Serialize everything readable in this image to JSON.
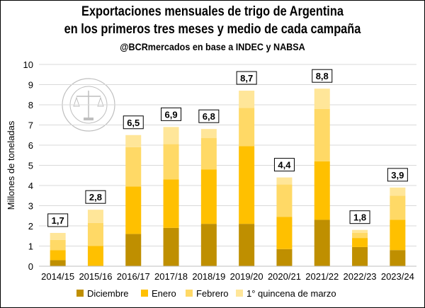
{
  "chart_data": {
    "type": "bar",
    "stacked": true,
    "title": "Exportaciones mensuales de trigo de Argentina",
    "subtitle_line2": "en los primeros tres meses y medio de cada campaña",
    "subtitle_line3": "@BCRmercados en base a INDEC y NABSA",
    "ylabel": "Millones de toneladas",
    "xlabel": "",
    "ylim": [
      0,
      10
    ],
    "yticks": [
      0,
      1,
      2,
      3,
      4,
      5,
      6,
      7,
      8,
      9,
      10
    ],
    "grid": true,
    "legend_position": "bottom",
    "categories": [
      "2014/15",
      "2015/16",
      "2016/17",
      "2017/18",
      "2018/19",
      "2019/20",
      "2020/21",
      "2021/22",
      "2022/23",
      "2023/24"
    ],
    "series": [
      {
        "name": "Diciembre",
        "color": "#bf8f00",
        "values": [
          0.3,
          0.0,
          1.6,
          1.9,
          2.1,
          2.1,
          0.85,
          2.3,
          0.95,
          0.8
        ]
      },
      {
        "name": "Enero",
        "color": "#ffc000",
        "values": [
          0.5,
          1.0,
          2.35,
          2.4,
          2.7,
          3.85,
          1.6,
          2.9,
          0.45,
          1.5
        ]
      },
      {
        "name": "Febrero",
        "color": "#ffd966",
        "values": [
          0.5,
          1.15,
          1.95,
          1.75,
          1.55,
          1.9,
          1.6,
          2.6,
          0.25,
          1.2
        ]
      },
      {
        "name": "1° quincena de marzo",
        "color": "#ffe699",
        "values": [
          0.35,
          0.65,
          0.6,
          0.85,
          0.45,
          0.85,
          0.35,
          1.0,
          0.15,
          0.4
        ]
      }
    ],
    "totals": [
      "1,7",
      "2,8",
      "6,5",
      "6,9",
      "6,8",
      "8,7",
      "4,4",
      "8,8",
      "1,8",
      "3,9"
    ]
  }
}
